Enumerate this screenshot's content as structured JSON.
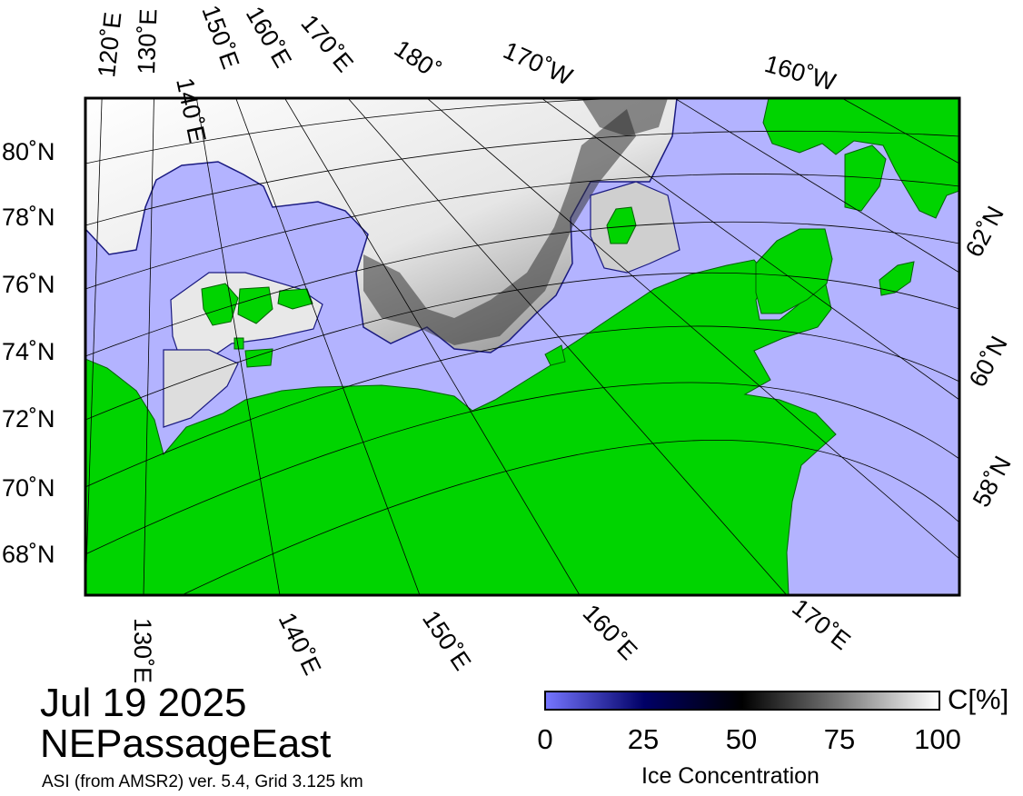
{
  "map": {
    "date": "Jul 19 2025",
    "region": "NEPassageEast",
    "credit": "ASI (from AMSR2) ver. 5.4,  Grid 3.125 km",
    "colors": {
      "ocean": "#b3b3ff",
      "land": "#00d400",
      "ice_high": "#ffffff",
      "ice_low": "#000066"
    },
    "lat_labels_left": [
      "80˚N",
      "78˚N",
      "76˚N",
      "74˚N",
      "72˚N",
      "70˚N",
      "68˚N"
    ],
    "lat_labels_right": [
      "62˚N",
      "60˚N",
      "58˚N"
    ],
    "lon_labels_top": [
      "120˚E",
      "130˚E",
      "140˚E",
      "150˚E",
      "160˚E",
      "170˚E",
      "180˚",
      "170˚W",
      "160˚W"
    ],
    "lon_labels_bottom": [
      "130˚E",
      "140˚E",
      "150˚E",
      "160˚E",
      "170˚E"
    ]
  },
  "colorbar": {
    "unit": "C[%]",
    "ticks": [
      "0",
      "25",
      "50",
      "75",
      "100"
    ],
    "tick_values": [
      0,
      25,
      50,
      75,
      100
    ],
    "title": "Ice Concentration"
  }
}
